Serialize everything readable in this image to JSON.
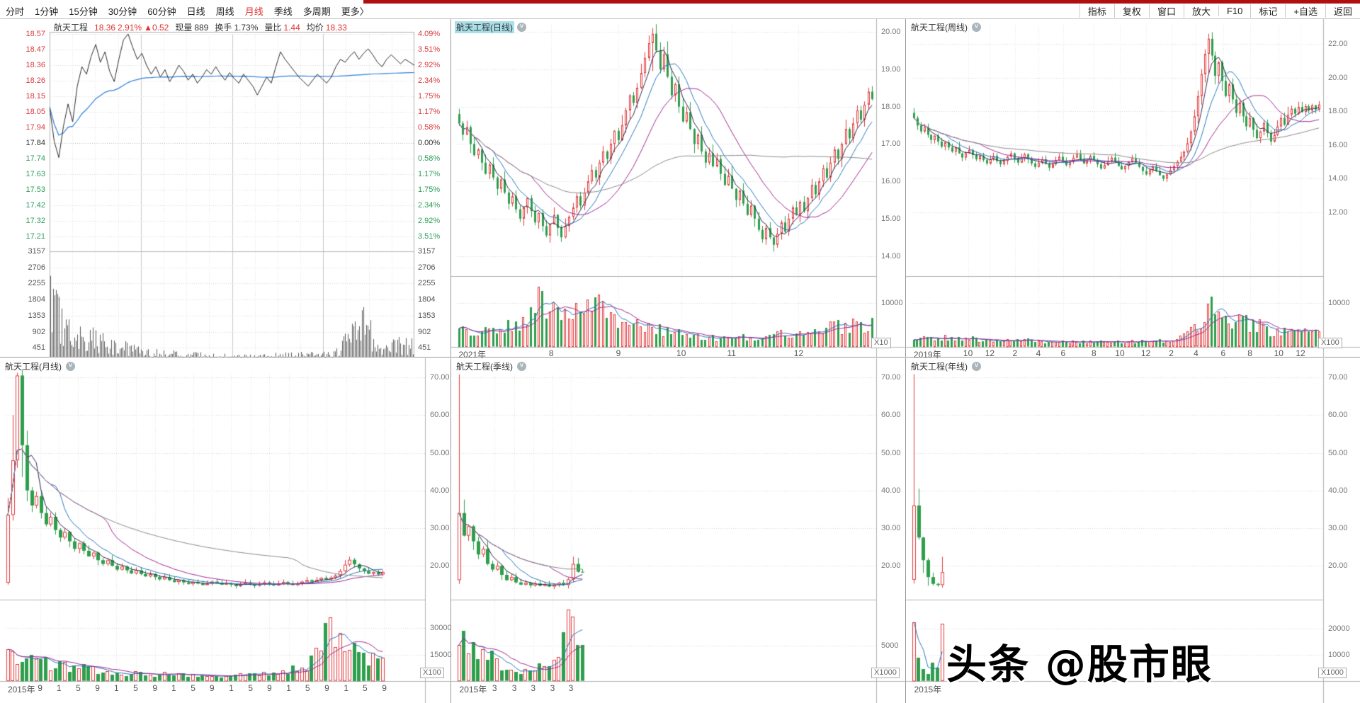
{
  "app": {
    "watermark": "头条 @股市眼"
  },
  "colors": {
    "up": "#e23a3c",
    "down": "#2e9e4c",
    "ma_dark": "#2a2a52",
    "ma_blue": "#2678c0",
    "ma_purple": "#a02890",
    "ma_gray": "#8a8a8a",
    "menu_selected": "#e03333",
    "top_strip": "#b00f0f",
    "title_highlight": "#a9dfe8",
    "label_red": "#d93a3c",
    "label_green": "#2e9e5d"
  },
  "top_menu": {
    "left": [
      {
        "label": "分时",
        "active": false
      },
      {
        "label": "1分钟",
        "active": false
      },
      {
        "label": "15分钟",
        "active": false
      },
      {
        "label": "30分钟",
        "active": false
      },
      {
        "label": "60分钟",
        "active": false
      },
      {
        "label": "日线",
        "active": false
      },
      {
        "label": "周线",
        "active": false
      },
      {
        "label": "月线",
        "active": true
      },
      {
        "label": "季线",
        "active": false
      },
      {
        "label": "多周期",
        "active": false
      },
      {
        "label": "更多〉",
        "active": false
      }
    ],
    "right": [
      "指标",
      "复权",
      "窗口",
      "放大",
      "F10",
      "标记",
      "+自选",
      "返回"
    ]
  },
  "intraday": {
    "type": "line",
    "header_parts": [
      [
        "航天工程",
        "b",
        "stock-name",
        1
      ],
      [
        "18.36",
        "r",
        "last-price",
        0
      ],
      [
        "2.91%",
        "r",
        "change-percent",
        0
      ],
      [
        "▲0.52",
        "r",
        "change-amount",
        1
      ],
      [
        "现量",
        "b",
        "current-volume-label",
        0
      ],
      [
        "889",
        "b",
        "current-volume",
        1
      ],
      [
        "换手",
        "b",
        "turnover-label",
        0
      ],
      [
        "1.73%",
        "b",
        "turnover",
        1
      ],
      [
        "量比",
        "b",
        "volume-ratio-label",
        0
      ],
      [
        "1.44",
        "r",
        "volume-ratio",
        1
      ],
      [
        "均价",
        "b",
        "avg-price-label",
        0
      ],
      [
        "18.33",
        "r",
        "avg-price",
        0
      ]
    ],
    "left_prices": [
      "18.57",
      "18.47",
      "18.36",
      "18.26",
      "18.15",
      "18.05",
      "17.94",
      "17.84",
      "17.74",
      "17.63",
      "17.53",
      "17.42",
      "17.32",
      "17.21"
    ],
    "right_pcts": [
      "4.09%",
      "3.51%",
      "2.92%",
      "2.34%",
      "1.75%",
      "1.17%",
      "0.58%",
      "0.00%",
      "0.58%",
      "1.17%",
      "1.75%",
      "2.34%",
      "2.92%",
      "3.51%"
    ],
    "volume_ticks": [
      "3157",
      "2706",
      "2255",
      "1804",
      "1353",
      "902",
      "451"
    ],
    "base_price": 17.84,
    "points": [
      18.08,
      17.85,
      17.74,
      17.95,
      18.1,
      17.98,
      18.22,
      18.35,
      18.3,
      18.42,
      18.5,
      18.38,
      18.45,
      18.32,
      18.25,
      18.4,
      18.53,
      18.57,
      18.48,
      18.4,
      18.44,
      18.36,
      18.3,
      18.35,
      18.28,
      18.33,
      18.25,
      18.3,
      18.36,
      18.32,
      18.26,
      18.3,
      18.24,
      18.28,
      18.33,
      18.3,
      18.35,
      18.3,
      18.26,
      18.31,
      18.27,
      18.24,
      18.3,
      18.26,
      18.22,
      18.16,
      18.22,
      18.28,
      18.24,
      18.35,
      18.45,
      18.4,
      18.36,
      18.32,
      18.28,
      18.25,
      18.22,
      18.26,
      18.3,
      18.27,
      18.24,
      18.28,
      18.35,
      18.4,
      18.38,
      18.42,
      18.45,
      18.4,
      18.44,
      18.47,
      18.43,
      18.38,
      18.35,
      18.4,
      18.43,
      18.4,
      18.37,
      18.4,
      18.38,
      18.36
    ],
    "volmax": 3300,
    "venv": [
      [
        0,
        0.95
      ],
      [
        0.03,
        0.5
      ],
      [
        0.08,
        0.35
      ],
      [
        0.15,
        0.28
      ],
      [
        0.25,
        0.15
      ],
      [
        0.4,
        0.1
      ],
      [
        0.55,
        0.08
      ],
      [
        0.65,
        0.1
      ],
      [
        0.78,
        0.12
      ],
      [
        0.86,
        0.55
      ],
      [
        0.9,
        0.2
      ],
      [
        1,
        0.25
      ]
    ]
  },
  "panels": [
    {
      "id": "daily",
      "type": "candlestick",
      "title": "航天工程(日线)",
      "selected": true,
      "unit": "X10",
      "row": 1,
      "yticks": [
        "20.00",
        "19.00",
        "18.00",
        "17.00",
        "16.00",
        "15.00",
        "14.00"
      ],
      "ylim": [
        20.19,
        13.5
      ],
      "vol_ticks": [
        "10000"
      ],
      "volmax": 15550,
      "pitch": 5.35,
      "seed": 11,
      "start": 17.8,
      "xlabels": [
        [
          "2021年",
          0.004
        ],
        [
          "8",
          0.225
        ],
        [
          "9",
          0.385
        ],
        [
          "10",
          0.535
        ],
        [
          "11",
          0.655
        ],
        [
          "12",
          0.815
        ]
      ],
      "wicks": {
        "51": [
          20.1,
          18.95
        ],
        "83": [
          14.5,
          14.12
        ]
      },
      "venv": [
        [
          0,
          0.32
        ],
        [
          0.15,
          0.45
        ],
        [
          0.2,
          0.95
        ],
        [
          0.27,
          0.65
        ],
        [
          0.33,
          0.8
        ],
        [
          0.42,
          0.5
        ],
        [
          0.52,
          0.28
        ],
        [
          0.62,
          0.18
        ],
        [
          0.72,
          0.2
        ],
        [
          0.82,
          0.28
        ],
        [
          0.9,
          0.38
        ],
        [
          1,
          0.45
        ]
      ],
      "closes": [
        17.55,
        17.25,
        17.45,
        17.0,
        16.7,
        16.85,
        16.5,
        16.2,
        16.45,
        16.1,
        15.8,
        16.05,
        15.7,
        15.4,
        15.6,
        15.25,
        15.0,
        15.3,
        15.55,
        15.2,
        14.9,
        15.15,
        14.8,
        14.55,
        14.85,
        15.1,
        14.75,
        14.5,
        14.8,
        15.05,
        15.3,
        15.6,
        15.35,
        15.7,
        16.0,
        16.3,
        16.1,
        16.5,
        16.8,
        16.6,
        17.0,
        17.35,
        17.1,
        17.5,
        17.9,
        18.3,
        18.1,
        18.5,
        18.9,
        19.3,
        19.7,
        19.95,
        19.5,
        19.0,
        19.4,
        18.8,
        18.3,
        18.6,
        18.0,
        17.6,
        17.85,
        17.4,
        17.0,
        17.25,
        16.8,
        16.5,
        16.75,
        16.4,
        16.6,
        16.2,
        15.9,
        16.15,
        15.8,
        15.5,
        15.75,
        15.4,
        15.1,
        15.35,
        15.0,
        14.7,
        14.45,
        14.75,
        14.5,
        14.3,
        14.6,
        14.9,
        14.65,
        15.0,
        15.3,
        15.1,
        15.45,
        15.2,
        15.55,
        15.9,
        15.65,
        16.0,
        16.35,
        16.1,
        16.5,
        16.85,
        16.6,
        17.0,
        17.4,
        17.15,
        17.55,
        17.9,
        17.65,
        18.05,
        18.4,
        18.2
      ]
    },
    {
      "id": "weekly",
      "type": "candlestick",
      "title": "航天工程(周线)",
      "selected": false,
      "unit": "X100",
      "row": 1,
      "yticks": [
        "22.00",
        "20.00",
        "18.00",
        "16.00",
        "14.00",
        "12.00"
      ],
      "ylim": [
        23.13,
        8.3
      ],
      "vol_ticks": [
        "10000"
      ],
      "volmax": 15550,
      "pitch": 4.89,
      "seed": 23,
      "start": 17.9,
      "xlabels": [
        [
          "2019年",
          0.005
        ],
        [
          "10",
          0.137
        ],
        [
          "12",
          0.19
        ],
        [
          "2",
          0.251
        ],
        [
          "4",
          0.308
        ],
        [
          "6",
          0.368
        ],
        [
          "8",
          0.443
        ],
        [
          "10",
          0.506
        ],
        [
          "12",
          0.569
        ],
        [
          "2",
          0.631
        ],
        [
          "4",
          0.691
        ],
        [
          "6",
          0.757
        ],
        [
          "8",
          0.822
        ],
        [
          "10",
          0.892
        ],
        [
          "12",
          0.945
        ]
      ],
      "wicks": {
        "72": [
          14.2,
          13.85
        ],
        "85": [
          22.6,
          20.2
        ]
      },
      "venv": [
        [
          0,
          0.22
        ],
        [
          0.2,
          0.13
        ],
        [
          0.45,
          0.1
        ],
        [
          0.62,
          0.12
        ],
        [
          0.7,
          0.35
        ],
        [
          0.73,
          0.95
        ],
        [
          0.78,
          0.5
        ],
        [
          0.84,
          0.45
        ],
        [
          0.9,
          0.28
        ],
        [
          1,
          0.3
        ]
      ],
      "closes": [
        17.6,
        17.15,
        16.8,
        17.05,
        16.6,
        16.3,
        16.55,
        16.2,
        15.9,
        16.15,
        15.85,
        15.6,
        15.85,
        15.5,
        15.25,
        15.5,
        15.7,
        15.4,
        15.15,
        15.35,
        15.1,
        14.9,
        15.15,
        15.35,
        15.05,
        14.85,
        15.05,
        15.3,
        15.5,
        15.2,
        14.95,
        15.2,
        15.45,
        15.15,
        14.9,
        14.7,
        14.95,
        15.15,
        14.9,
        14.65,
        14.85,
        15.1,
        15.3,
        15.05,
        14.8,
        15.0,
        15.25,
        15.45,
        15.15,
        14.9,
        15.1,
        15.35,
        15.1,
        14.85,
        14.6,
        14.8,
        15.05,
        15.25,
        15.0,
        14.75,
        14.55,
        14.75,
        15.0,
        15.2,
        14.95,
        14.7,
        14.45,
        14.25,
        14.5,
        14.7,
        14.45,
        14.2,
        14.0,
        14.25,
        14.5,
        14.75,
        15.0,
        15.3,
        15.6,
        16.1,
        16.8,
        17.7,
        18.9,
        20.2,
        21.4,
        22.3,
        21.3,
        20.1,
        20.9,
        19.8,
        18.9,
        19.6,
        18.7,
        17.9,
        18.5,
        17.7,
        17.1,
        17.6,
        16.9,
        16.4,
        16.8,
        17.3,
        16.7,
        16.2,
        16.6,
        17.1,
        17.6,
        17.2,
        17.8,
        18.15,
        17.85,
        18.25,
        17.95,
        18.3,
        18.05,
        18.35,
        18.1,
        18.4
      ]
    },
    {
      "id": "monthly",
      "type": "candlestick",
      "title": "航天工程(月线)",
      "selected": false,
      "unit": "X100",
      "row": 2,
      "yticks": [
        "70.00",
        "60.00",
        "50.00",
        "40.00",
        "30.00",
        "20.00"
      ],
      "ylim": [
        70.95,
        11.4
      ],
      "vol_ticks": [
        "30000",
        "15000"
      ],
      "volmax": 45000,
      "pitch": 6.7,
      "seed": 37,
      "start": 15.5,
      "xlabels": [
        [
          "2015年",
          0.005
        ],
        [
          "9",
          0.082
        ],
        [
          "1",
          0.127
        ],
        [
          "5",
          0.173
        ],
        [
          "9",
          0.219
        ],
        [
          "1",
          0.264
        ],
        [
          "5",
          0.31
        ],
        [
          "9",
          0.356
        ],
        [
          "1",
          0.401
        ],
        [
          "5",
          0.447
        ],
        [
          "9",
          0.492
        ],
        [
          "1",
          0.538
        ],
        [
          "5",
          0.584
        ],
        [
          "9",
          0.629
        ],
        [
          "1",
          0.675
        ],
        [
          "5",
          0.72
        ],
        [
          "9",
          0.766
        ],
        [
          "1",
          0.812
        ],
        [
          "5",
          0.857
        ],
        [
          "9",
          0.903
        ]
      ],
      "wicks": {
        "0": [
          38.0,
          15.0
        ],
        "1": [
          60.0,
          32.0
        ],
        "2": [
          71.2,
          46.0
        ]
      },
      "venv": [
        [
          0,
          0.5
        ],
        [
          0.05,
          0.42
        ],
        [
          0.12,
          0.28
        ],
        [
          0.3,
          0.14
        ],
        [
          0.55,
          0.1
        ],
        [
          0.72,
          0.12
        ],
        [
          0.8,
          0.3
        ],
        [
          0.86,
          0.95
        ],
        [
          0.9,
          0.7
        ],
        [
          0.95,
          0.45
        ],
        [
          1,
          0.3
        ]
      ],
      "closes": [
        33.5,
        48.0,
        70.5,
        52.0,
        40.0,
        36.0,
        38.5,
        34.0,
        31.0,
        33.0,
        29.5,
        27.5,
        29.0,
        26.5,
        24.5,
        26.0,
        24.0,
        22.5,
        23.5,
        21.5,
        20.5,
        21.5,
        20.0,
        19.0,
        19.8,
        18.8,
        18.0,
        18.8,
        17.8,
        17.2,
        17.8,
        17.0,
        16.4,
        17.0,
        16.2,
        15.7,
        16.2,
        15.6,
        15.2,
        15.7,
        15.3,
        14.9,
        15.3,
        15.8,
        15.4,
        15.0,
        15.4,
        15.0,
        14.6,
        15.0,
        15.5,
        15.1,
        14.7,
        15.1,
        15.6,
        15.2,
        14.8,
        15.2,
        15.7,
        15.3,
        14.9,
        15.3,
        15.8,
        16.2,
        15.8,
        16.3,
        16.8,
        16.4,
        16.9,
        17.4,
        18.6,
        20.3,
        21.6,
        20.4,
        19.3,
        18.6,
        17.9,
        18.3,
        17.7,
        18.3
      ]
    },
    {
      "id": "quarterly",
      "type": "candlestick",
      "title": "航天工程(季线)",
      "selected": false,
      "unit": "X1000",
      "row": 2,
      "yticks": [
        "70.00",
        "60.00",
        "50.00",
        "40.00",
        "30.00",
        "20.00"
      ],
      "ylim": [
        70.95,
        11.4
      ],
      "vol_ticks": [
        "5000"
      ],
      "volmax": 11200,
      "pitch": 6.7,
      "seed": 53,
      "start": 16.2,
      "xlabels": [
        [
          "2015年",
          0.006
        ],
        [
          "3",
          0.09
        ],
        [
          "3",
          0.137
        ],
        [
          "3",
          0.182
        ],
        [
          "3",
          0.228
        ],
        [
          "3",
          0.272
        ]
      ],
      "wicks": {
        "0": [
          70.8,
          15.2
        ]
      },
      "venv": [
        [
          0,
          0.85
        ],
        [
          0.1,
          0.6
        ],
        [
          0.45,
          0.15
        ],
        [
          0.78,
          0.3
        ],
        [
          0.9,
          1.0
        ],
        [
          1,
          0.6
        ]
      ],
      "closes": [
        34.0,
        28.0,
        30.5,
        26.5,
        23.0,
        24.5,
        20.5,
        19.0,
        20.0,
        17.6,
        16.2,
        17.0,
        15.6,
        15.0,
        15.5,
        14.8,
        15.3,
        14.7,
        15.1,
        14.5,
        15.0,
        15.5,
        14.9,
        16.4,
        20.5,
        18.4,
        18.3
      ]
    },
    {
      "id": "yearly",
      "type": "candlestick",
      "title": "航天工程(年线)",
      "selected": false,
      "unit": "X1000",
      "row": 2,
      "yticks": [
        "70.00",
        "60.00",
        "50.00",
        "40.00",
        "30.00",
        "20.00"
      ],
      "ylim": [
        70.95,
        11.4
      ],
      "vol_ticks": [
        "20000",
        "10000"
      ],
      "volmax": 30200,
      "pitch": 6.7,
      "seed": 71,
      "start": 16.3,
      "xlabels": [
        [
          "2015年",
          0.006
        ]
      ],
      "wicks": {
        "0": [
          70.8,
          15.3
        ],
        "6": [
          22.4,
          14.2
        ]
      },
      "noMainMA": true,
      "volMAwins": [
        3
      ],
      "vols": [
        22500,
        9000,
        4500,
        2600,
        7000,
        5200,
        21800
      ],
      "venv": [
        [
          0,
          1.0
        ],
        [
          1,
          0.5
        ]
      ],
      "closes": [
        36.0,
        27.5,
        21.5,
        17.0,
        15.2,
        14.9,
        18.3
      ]
    }
  ]
}
